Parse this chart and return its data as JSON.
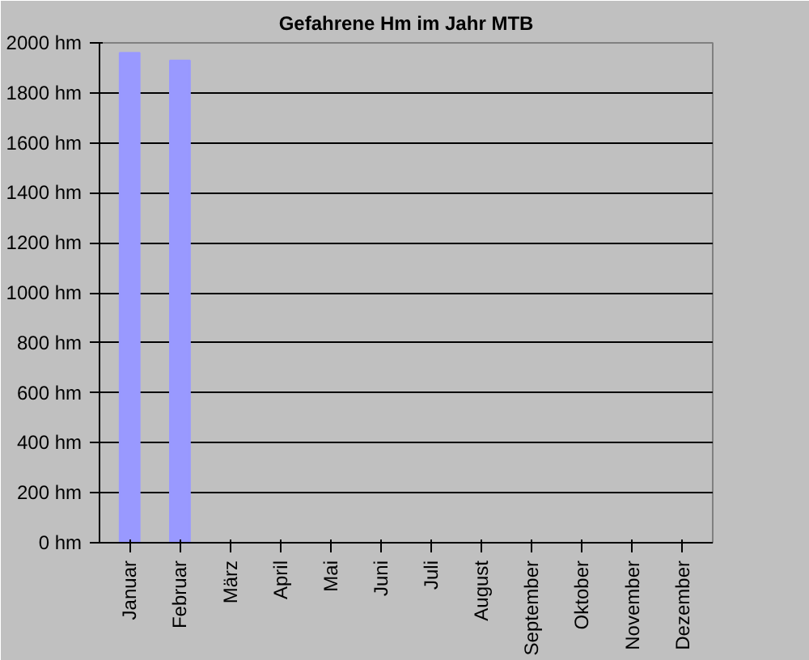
{
  "chart_data": {
    "type": "bar",
    "title": "Gefahrene Hm im Jahr MTB",
    "categories": [
      "Januar",
      "Februar",
      "März",
      "April",
      "Mai",
      "Juni",
      "Juli",
      "August",
      "September",
      "Oktober",
      "November",
      "Dezember"
    ],
    "values": [
      1960,
      1930,
      0,
      0,
      0,
      0,
      0,
      0,
      0,
      0,
      0,
      0
    ],
    "color": "#9999ff",
    "ylim": [
      0,
      2000
    ],
    "yticks": [
      {
        "value": 0,
        "label": "0 hm"
      },
      {
        "value": 200,
        "label": "200 hm"
      },
      {
        "value": 400,
        "label": "400 hm"
      },
      {
        "value": 600,
        "label": "600 hm"
      },
      {
        "value": 800,
        "label": "800 hm"
      },
      {
        "value": 1000,
        "label": "1000 hm"
      },
      {
        "value": 1200,
        "label": "1200 hm"
      },
      {
        "value": 1400,
        "label": "1400 hm"
      },
      {
        "value": 1600,
        "label": "1600 hm"
      },
      {
        "value": 1800,
        "label": "1800 hm"
      },
      {
        "value": 2000,
        "label": "2000 hm"
      }
    ],
    "grid": "y"
  }
}
